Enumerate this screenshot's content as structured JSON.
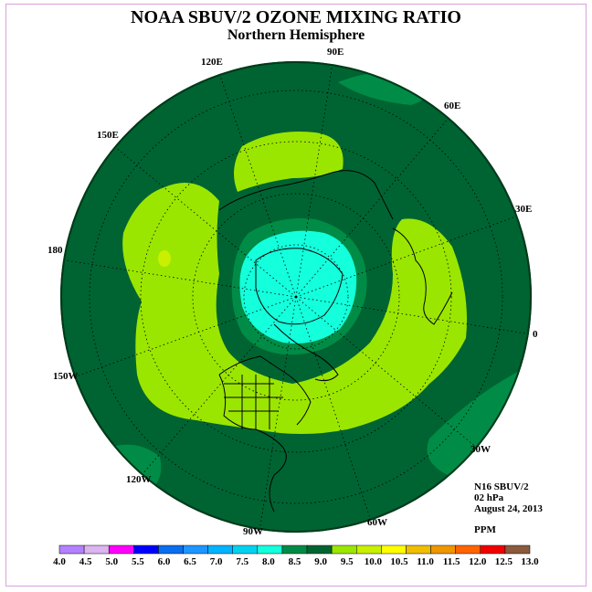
{
  "title": "NOAA SBUV/2 OZONE MIXING RATIO",
  "subtitle": "Northern Hemisphere",
  "longitude_labels": {
    "e120": "120E",
    "e90": "90E",
    "e60": "60E",
    "e150": "150E",
    "e30": "30E",
    "l180": "180",
    "l0": "0",
    "w150": "150W",
    "w30": "30W",
    "w120": "120W",
    "w60": "60W",
    "w90": "90W"
  },
  "info": {
    "instrument": "N16 SBUV/2",
    "pressure": "02 hPa",
    "date": "August 24, 2013",
    "units": "PPM"
  },
  "colorbar": {
    "ticks": [
      "4.0",
      "4.5",
      "5.0",
      "5.5",
      "6.0",
      "6.5",
      "7.0",
      "7.5",
      "8.0",
      "8.5",
      "9.0",
      "9.5",
      "10.0",
      "10.5",
      "11.0",
      "11.5",
      "12.0",
      "12.5",
      "13.0"
    ],
    "colors": [
      "#b380ff",
      "#dcb4f0",
      "#ff00ff",
      "#0000ff",
      "#0a6ef0",
      "#1e96ff",
      "#00b4ff",
      "#00d2f0",
      "#14ffdc",
      "#008c46",
      "#006432",
      "#9be600",
      "#c8f000",
      "#ffff00",
      "#f0be00",
      "#f09600",
      "#ff6400",
      "#f00000",
      "#8c5a3c"
    ]
  },
  "map_colors": {
    "background": "#006432",
    "ring_dark": "#007838",
    "ring_light": "#9be600",
    "ring_light2": "#c8f000",
    "pole": "#14ffdc",
    "mid_green": "#008c46"
  }
}
